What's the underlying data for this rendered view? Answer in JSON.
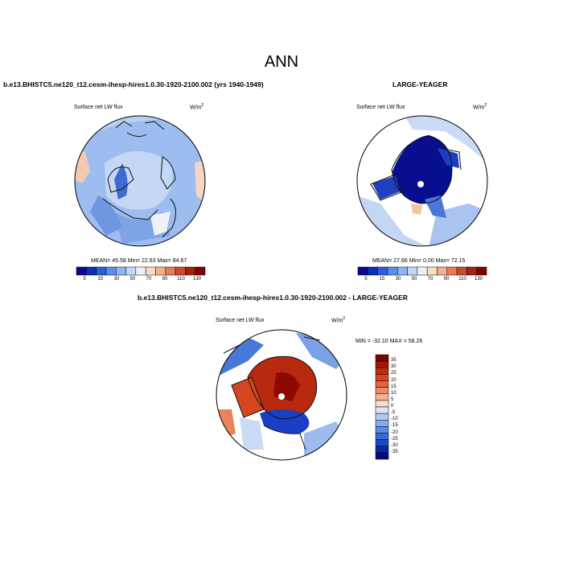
{
  "main_title": "ANN",
  "panel1": {
    "title": "b.e13.BHISTC5.ne120_t12.cesm-ihesp-hires1.0.30-1920-2100.002 (yrs 1940-1949)",
    "variable": "Surface net LW flux",
    "units": "W/m",
    "units_sup": "2",
    "stats": "MEAN= 45.58 Min= 22.63 Max= 84.67"
  },
  "panel2": {
    "title": "LARGE-YEAGER",
    "variable": "Surface net LW flux",
    "units": "W/m",
    "units_sup": "2",
    "stats": "MEAN= 27.66 Min= 0.00 Max= 72.15"
  },
  "panel3": {
    "title": "b.e13.BHISTC5.ne120_t12.cesm-ihesp-hires1.0.30-1920-2100.002 - LARGE-YEAGER",
    "variable": "Surface net LW flux",
    "units": "W/m",
    "units_sup": "2",
    "minmax": "MIN = -32.10 MAX = 58.26"
  },
  "colorbar_abs": {
    "labels": [
      "5",
      "15",
      "30",
      "50",
      "70",
      "90",
      "110",
      "130"
    ],
    "colors": [
      "#08088c",
      "#0d2fb8",
      "#2a5fd9",
      "#5b8ee6",
      "#8fb6f0",
      "#c2d8f5",
      "#eef2f8",
      "#f8dcc4",
      "#f4b08a",
      "#e57c57",
      "#cc4a2d",
      "#a8200f",
      "#7a0400"
    ]
  },
  "colorbar_diff": {
    "labels": [
      "35",
      "30",
      "25",
      "20",
      "15",
      "10",
      "5",
      "0",
      "-5",
      "-10",
      "-15",
      "-20",
      "-25",
      "-30",
      "-35"
    ],
    "colors": [
      "#7a0400",
      "#a3150a",
      "#c02a10",
      "#d6451f",
      "#e5643a",
      "#ef8a62",
      "#f5b594",
      "#f8dac6",
      "#d9e6f5",
      "#b1cbef",
      "#86abea",
      "#5c8be3",
      "#376ad9",
      "#1d48c4",
      "#0c26a3",
      "#050a80"
    ]
  }
}
